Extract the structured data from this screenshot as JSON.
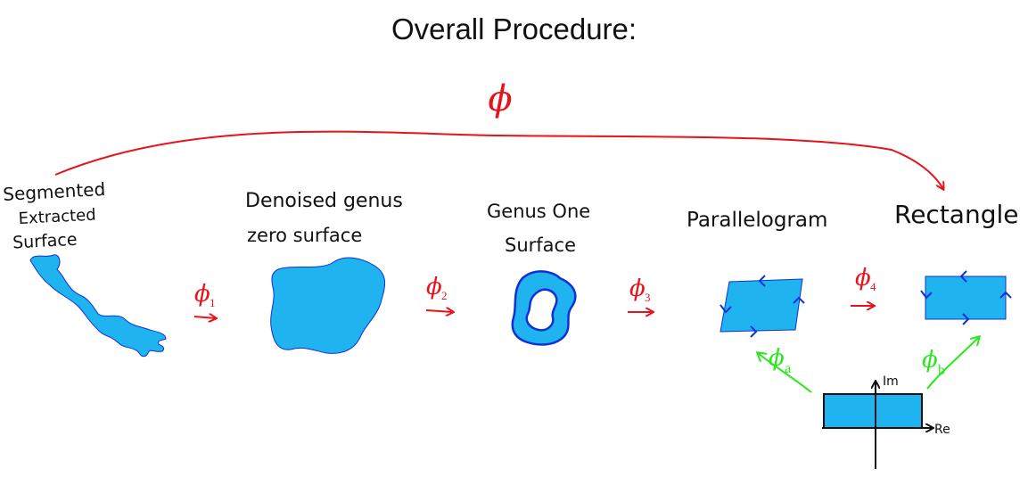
{
  "title": "Overall Procedure:",
  "overall_map": "ϕ",
  "stages": [
    {
      "lines": [
        "Segmented",
        "Extracted",
        "Surface"
      ]
    },
    {
      "lines": [
        "Denoised genus",
        "zero surface"
      ]
    },
    {
      "lines": [
        "Genus One",
        "Surface"
      ]
    },
    {
      "lines": [
        "Parallelogram"
      ]
    },
    {
      "lines": [
        "Rectangle"
      ]
    }
  ],
  "maps": [
    {
      "symbol": "ϕ",
      "sub": "1"
    },
    {
      "symbol": "ϕ",
      "sub": "2"
    },
    {
      "symbol": "ϕ",
      "sub": "3"
    },
    {
      "symbol": "ϕ",
      "sub": "4"
    }
  ],
  "complex_maps": [
    {
      "symbol": "ϕ",
      "sub": "a"
    },
    {
      "symbol": "ϕ",
      "sub": "b"
    }
  ],
  "axes": {
    "im": "Im",
    "re": "Re"
  },
  "colors": {
    "shape_fill": "#1fb3f0",
    "shape_stroke": "#1230d6",
    "map_arrows": "#e8121a",
    "complex_arrows": "#2ce61f",
    "ink": "#111111"
  }
}
